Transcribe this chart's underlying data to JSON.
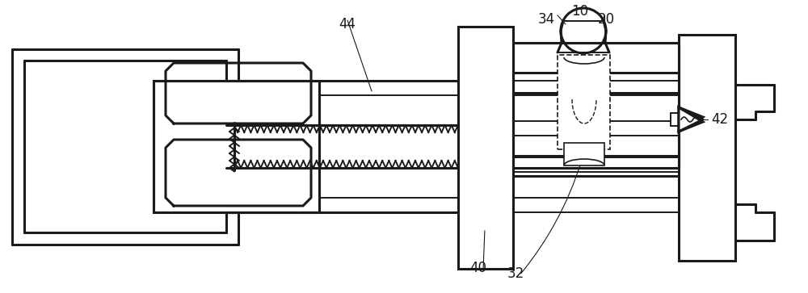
{
  "bg_color": "#ffffff",
  "line_color": "#1a1a1a",
  "lw": 1.4,
  "lw2": 2.2,
  "fig_width": 10.0,
  "fig_height": 3.63,
  "dpi": 100,
  "font_size": 12
}
